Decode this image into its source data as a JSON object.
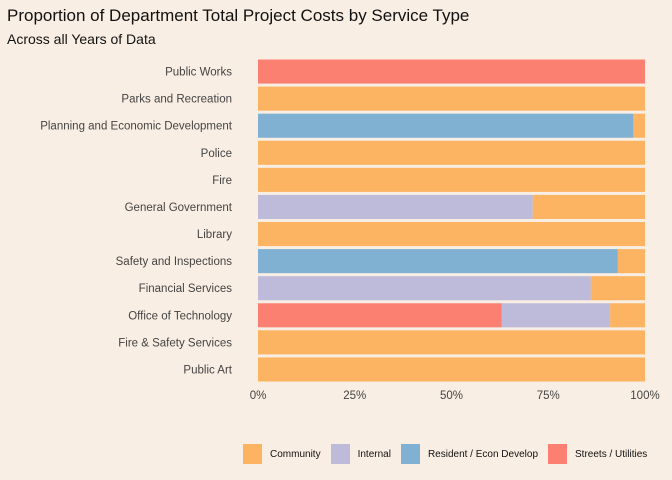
{
  "chart_data": {
    "type": "bar",
    "orientation": "horizontal",
    "stacked": true,
    "title": "Proportion of Department Total Project Costs by Service Type",
    "subtitle": "Across all Years of Data",
    "xlabel": "",
    "ylabel": "",
    "xlim": [
      0,
      1
    ],
    "x_ticks": [
      "0%",
      "25%",
      "50%",
      "75%",
      "100%"
    ],
    "x_tick_values": [
      0,
      0.25,
      0.5,
      0.75,
      1.0
    ],
    "legend_position": "bottom",
    "categories": [
      "Public Works",
      "Parks and Recreation",
      "Planning and Economic Development",
      "Police",
      "Fire",
      "General Government",
      "Library",
      "Safety and Inspections",
      "Financial Services",
      "Office of Technology",
      "Fire & Safety Services",
      "Public Art"
    ],
    "series": [
      {
        "name": "Streets / Utilities",
        "color": "#fb8072",
        "values": [
          1.0,
          0,
          0,
          0,
          0,
          0,
          0,
          0,
          0,
          0.63,
          0,
          0
        ]
      },
      {
        "name": "Resident / Econ Develop",
        "color": "#80b1d3",
        "values": [
          0,
          0,
          0.97,
          0,
          0,
          0,
          0,
          0.93,
          0,
          0,
          0,
          0
        ]
      },
      {
        "name": "Internal",
        "color": "#bebada",
        "values": [
          0,
          0,
          0,
          0,
          0,
          0.71,
          0,
          0,
          0.86,
          0.28,
          0,
          0
        ]
      },
      {
        "name": "Community",
        "color": "#fdb462",
        "values": [
          0,
          1.0,
          0.03,
          1.0,
          1.0,
          0.29,
          1.0,
          0.07,
          0.14,
          0.09,
          1.0,
          1.0
        ]
      }
    ],
    "legend": [
      "Community",
      "Internal",
      "Resident / Econ Develop",
      "Streets / Utilities"
    ]
  }
}
